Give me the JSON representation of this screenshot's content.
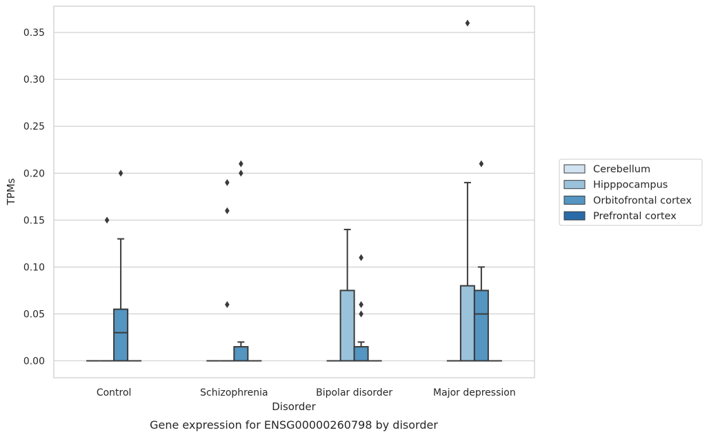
{
  "chart_data": {
    "type": "box",
    "xlabel": "Disorder",
    "ylabel": "TPMs",
    "caption": "Gene expression for ENSG00000260798 by disorder",
    "categories": [
      "Control",
      "Schizophrenia",
      "Bipolar disorder",
      "Major depression"
    ],
    "ylim": [
      -0.018,
      0.378
    ],
    "yticks": [
      0.0,
      0.05,
      0.1,
      0.15,
      0.2,
      0.25,
      0.3,
      0.35
    ],
    "ytick_labels": [
      "0.00",
      "0.05",
      "0.10",
      "0.15",
      "0.20",
      "0.25",
      "0.30",
      "0.35"
    ],
    "grid": "horizontal",
    "legend_position": "right",
    "series": [
      {
        "name": "Cerebellum",
        "color": "#d1e2f1",
        "boxes": [
          {
            "q1": 0,
            "median": 0,
            "q3": 0,
            "whisker_low": 0,
            "whisker_high": 0,
            "outliers": []
          },
          {
            "q1": 0,
            "median": 0,
            "q3": 0,
            "whisker_low": 0,
            "whisker_high": 0,
            "outliers": []
          },
          {
            "q1": 0,
            "median": 0,
            "q3": 0,
            "whisker_low": 0,
            "whisker_high": 0,
            "outliers": []
          },
          {
            "q1": 0,
            "median": 0,
            "q3": 0,
            "whisker_low": 0,
            "whisker_high": 0,
            "outliers": []
          }
        ]
      },
      {
        "name": "Hipppocampus",
        "color": "#9ac2db",
        "boxes": [
          {
            "q1": 0,
            "median": 0,
            "q3": 0,
            "whisker_low": 0,
            "whisker_high": 0,
            "outliers": [
              0.15
            ]
          },
          {
            "q1": 0,
            "median": 0,
            "q3": 0,
            "whisker_low": 0,
            "whisker_high": 0,
            "outliers": [
              0.06,
              0.16,
              0.19
            ]
          },
          {
            "q1": 0,
            "median": 0,
            "q3": 0.075,
            "whisker_low": 0,
            "whisker_high": 0.14,
            "outliers": []
          },
          {
            "q1": 0,
            "median": 0,
            "q3": 0.08,
            "whisker_low": 0,
            "whisker_high": 0.19,
            "outliers": [
              0.36
            ]
          }
        ]
      },
      {
        "name": "Orbitofrontal cortex",
        "color": "#5495c2",
        "boxes": [
          {
            "q1": 0,
            "median": 0.03,
            "q3": 0.055,
            "whisker_low": 0,
            "whisker_high": 0.13,
            "outliers": [
              0.2
            ]
          },
          {
            "q1": 0,
            "median": 0,
            "q3": 0.015,
            "whisker_low": 0,
            "whisker_high": 0.02,
            "outliers": [
              0.2,
              0.21
            ]
          },
          {
            "q1": 0,
            "median": 0,
            "q3": 0.015,
            "whisker_low": 0,
            "whisker_high": 0.02,
            "outliers": [
              0.05,
              0.06,
              0.11
            ]
          },
          {
            "q1": 0,
            "median": 0.05,
            "q3": 0.075,
            "whisker_low": 0,
            "whisker_high": 0.1,
            "outliers": [
              0.21
            ]
          }
        ]
      },
      {
        "name": "Prefrontal cortex",
        "color": "#2b6aa8",
        "boxes": [
          {
            "q1": 0,
            "median": 0,
            "q3": 0,
            "whisker_low": 0,
            "whisker_high": 0,
            "outliers": []
          },
          {
            "q1": 0,
            "median": 0,
            "q3": 0,
            "whisker_low": 0,
            "whisker_high": 0,
            "outliers": []
          },
          {
            "q1": 0,
            "median": 0,
            "q3": 0,
            "whisker_low": 0,
            "whisker_high": 0,
            "outliers": []
          },
          {
            "q1": 0,
            "median": 0,
            "q3": 0,
            "whisker_low": 0,
            "whisker_high": 0,
            "outliers": []
          }
        ]
      }
    ]
  }
}
